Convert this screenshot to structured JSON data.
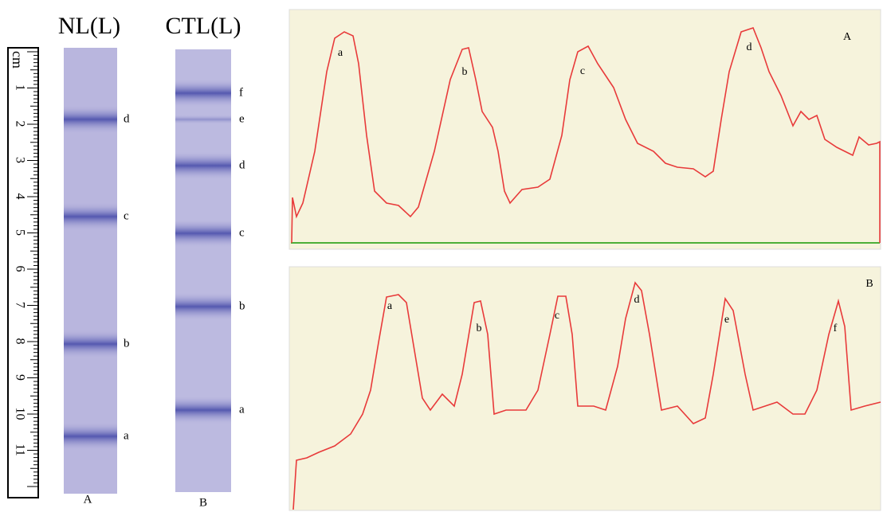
{
  "left_figure": {
    "strip_titles": [
      "NL(L)",
      "CTL(L)"
    ],
    "ruler": {
      "unit": "cm",
      "numbers": [
        1,
        2,
        3,
        4,
        5,
        6,
        7,
        8,
        9,
        10,
        11
      ]
    },
    "strip_a": {
      "band_labels": [
        "d",
        "c",
        "b",
        "a"
      ],
      "caption": "A"
    },
    "strip_b": {
      "band_labels": [
        "f",
        "e",
        "d",
        "c",
        "b",
        "a"
      ],
      "caption": "B"
    }
  },
  "right_figure": {
    "panel_a": {
      "label": "A",
      "peak_labels": [
        "a",
        "b",
        "c",
        "d"
      ]
    },
    "panel_b": {
      "label": "B",
      "peak_labels": [
        "a",
        "b",
        "c",
        "d",
        "e",
        "f"
      ]
    }
  }
}
